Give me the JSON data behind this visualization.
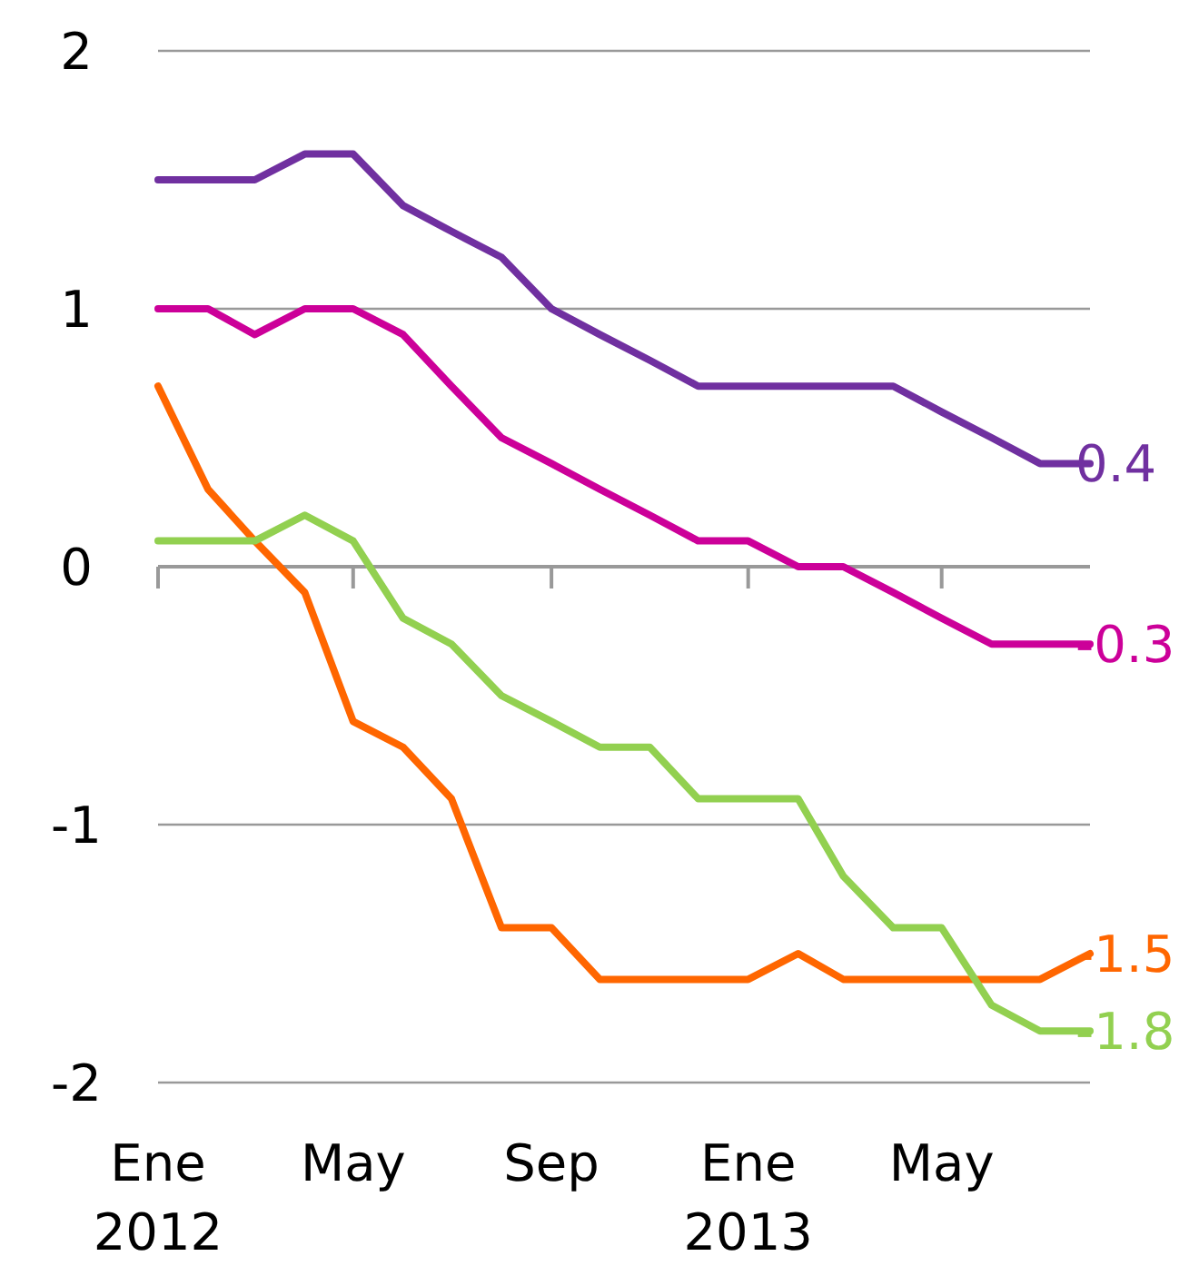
{
  "chart_data": {
    "type": "line",
    "x": [
      "2012-01",
      "2012-02",
      "2012-03",
      "2012-04",
      "2012-05",
      "2012-06",
      "2012-07",
      "2012-08",
      "2012-09",
      "2012-10",
      "2012-11",
      "2012-12",
      "2013-01",
      "2013-02",
      "2013-03",
      "2013-04",
      "2013-05",
      "2013-06",
      "2013-07",
      "2013-08"
    ],
    "series": [
      {
        "color": "#7030a0",
        "values": [
          1.5,
          1.5,
          1.5,
          1.6,
          1.6,
          1.4,
          1.3,
          1.2,
          1.0,
          0.9,
          0.8,
          0.7,
          0.7,
          0.7,
          0.7,
          0.7,
          0.6,
          0.5,
          0.4,
          0.4
        ]
      },
      {
        "color": "#cc0099",
        "values": [
          1.0,
          1.0,
          0.9,
          1.0,
          1.0,
          0.9,
          0.7,
          0.5,
          0.4,
          0.3,
          0.2,
          0.1,
          0.1,
          0.0,
          0.0,
          -0.1,
          -0.2,
          -0.3,
          -0.3,
          -0.3
        ]
      },
      {
        "color": "#ff6600",
        "values": [
          0.7,
          0.3,
          0.1,
          -0.1,
          -0.6,
          -0.7,
          -0.9,
          -1.4,
          -1.4,
          -1.6,
          -1.6,
          -1.6,
          -1.6,
          -1.5,
          -1.6,
          -1.6,
          -1.6,
          -1.6,
          -1.6,
          -1.5
        ]
      },
      {
        "color": "#92d050",
        "values": [
          0.1,
          0.1,
          0.1,
          0.2,
          0.1,
          -0.2,
          -0.3,
          -0.5,
          -0.6,
          -0.7,
          -0.7,
          -0.9,
          -0.9,
          -0.9,
          -1.2,
          -1.4,
          -1.4,
          -1.7,
          -1.8,
          -1.8
        ]
      }
    ],
    "annotations": [
      {
        "text": "0.4",
        "x": "2013-08",
        "y": 0.4
      },
      {
        "text": "-0.3",
        "x": "2013-08",
        "y": -0.3
      },
      {
        "text": "-1.5",
        "x": "2013-08",
        "y": -1.5
      },
      {
        "text": "-1.8",
        "x": "2013-08",
        "y": -1.8
      }
    ],
    "xlim": [
      "2012-01",
      "2013-08"
    ],
    "xticks": [
      {
        "value": "2012-01",
        "label": "Ene\n2012"
      },
      {
        "value": "2012-05",
        "label": "May"
      },
      {
        "value": "2012-09",
        "label": "Sep"
      },
      {
        "value": "2013-01",
        "label": "Ene\n2013"
      },
      {
        "value": "2013-05",
        "label": "May"
      }
    ],
    "ylim": [
      -2,
      2
    ],
    "yticks": [
      -2,
      -1,
      0,
      1,
      2
    ],
    "grid": "y",
    "marker": "none",
    "line_style": "solid"
  }
}
